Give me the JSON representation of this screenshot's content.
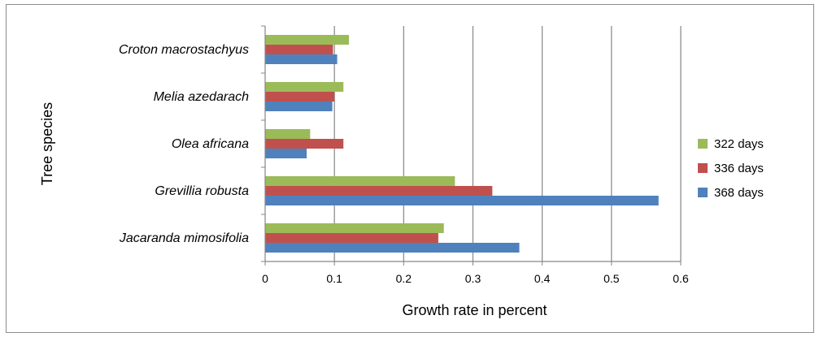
{
  "chart_data": {
    "type": "bar",
    "orientation": "horizontal",
    "categories": [
      "Jacaranda mimosifolia",
      "Grevillia robusta",
      "Olea africana",
      "Melia azedarach",
      "Croton macrostachyus"
    ],
    "series": [
      {
        "name": "368 days",
        "color": "#4f81bd",
        "values": [
          0.367,
          0.568,
          0.06,
          0.097,
          0.104
        ]
      },
      {
        "name": "336 days",
        "color": "#c0504d",
        "values": [
          0.25,
          0.328,
          0.113,
          0.1,
          0.098
        ]
      },
      {
        "name": "322 days",
        "color": "#9bbb59",
        "values": [
          0.258,
          0.274,
          0.065,
          0.113,
          0.121
        ]
      }
    ],
    "xlabel": "Growth rate in percent",
    "ylabel": "Tree species",
    "xlim": [
      0,
      0.6
    ],
    "x_ticks": [
      "0",
      "0.1",
      "0.2",
      "0.3",
      "0.4",
      "0.5",
      "0.6"
    ],
    "grid": "vertical",
    "legend_position": "right"
  }
}
